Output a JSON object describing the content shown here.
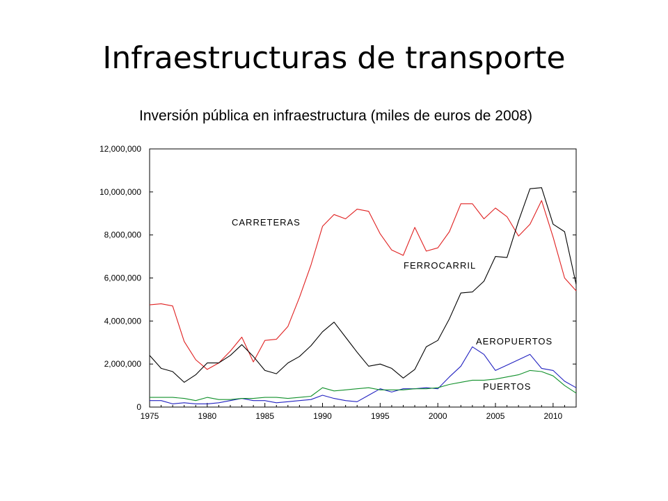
{
  "slide": {
    "title": "Infraestructuras de transporte"
  },
  "chart_data": {
    "type": "line",
    "title": "Inversión pública en infraestructura (miles de euros de 2008)",
    "xlabel": "",
    "ylabel": "",
    "xlim": [
      1975,
      2012
    ],
    "ylim": [
      0,
      12000000
    ],
    "x_ticks": [
      1975,
      1980,
      1985,
      1990,
      1995,
      2000,
      2005,
      2010
    ],
    "y_ticks": [
      0,
      2000000,
      4000000,
      6000000,
      8000000,
      10000000,
      12000000
    ],
    "y_tick_labels": [
      "0",
      "2,000,000",
      "4,000,000",
      "6,000,000",
      "8,000,000",
      "10,000,000",
      "12,000,000"
    ],
    "grid": false,
    "x": [
      1975,
      1976,
      1977,
      1978,
      1979,
      1980,
      1981,
      1982,
      1983,
      1984,
      1985,
      1986,
      1987,
      1988,
      1989,
      1990,
      1991,
      1992,
      1993,
      1994,
      1995,
      1996,
      1997,
      1998,
      1999,
      2000,
      2001,
      2002,
      2003,
      2004,
      2005,
      2006,
      2007,
      2008,
      2009,
      2010,
      2011,
      2012
    ],
    "series": [
      {
        "name": "CARRETERAS",
        "color": "#e02020",
        "values": [
          4750000,
          4800000,
          4700000,
          3050000,
          2200000,
          1750000,
          2050000,
          2600000,
          3250000,
          2100000,
          3100000,
          3150000,
          3750000,
          5100000,
          6600000,
          8400000,
          8950000,
          8750000,
          9200000,
          9100000,
          8050000,
          7300000,
          7050000,
          8350000,
          7250000,
          7400000,
          8150000,
          9450000,
          9450000,
          8750000,
          9250000,
          8850000,
          7950000,
          8500000,
          9600000,
          7900000,
          6000000,
          5400000
        ]
      },
      {
        "name": "FERROCARRIL",
        "color": "#000000",
        "values": [
          2400000,
          1800000,
          1650000,
          1150000,
          1500000,
          2050000,
          2050000,
          2400000,
          2900000,
          2350000,
          1700000,
          1550000,
          2050000,
          2350000,
          2850000,
          3500000,
          3950000,
          3250000,
          2550000,
          1900000,
          2000000,
          1800000,
          1350000,
          1750000,
          2800000,
          3100000,
          4100000,
          5300000,
          5350000,
          5850000,
          7000000,
          6950000,
          8650000,
          10150000,
          10200000,
          8500000,
          8150000,
          5700000
        ]
      },
      {
        "name": "AEROPUERTOS",
        "color": "#2020c0",
        "values": [
          300000,
          300000,
          150000,
          200000,
          150000,
          150000,
          200000,
          300000,
          400000,
          300000,
          300000,
          200000,
          250000,
          300000,
          350000,
          550000,
          400000,
          300000,
          250000,
          550000,
          850000,
          700000,
          850000,
          850000,
          900000,
          850000,
          1400000,
          1900000,
          2800000,
          2450000,
          1700000,
          1950000,
          2200000,
          2450000,
          1800000,
          1700000,
          1200000,
          900000
        ]
      },
      {
        "name": "PUERTOS",
        "color": "#10902a",
        "values": [
          450000,
          450000,
          450000,
          400000,
          300000,
          450000,
          350000,
          350000,
          400000,
          400000,
          450000,
          450000,
          400000,
          450000,
          500000,
          900000,
          750000,
          800000,
          850000,
          900000,
          800000,
          800000,
          800000,
          850000,
          850000,
          900000,
          1050000,
          1150000,
          1250000,
          1250000,
          1300000,
          1400000,
          1500000,
          1700000,
          1650000,
          1450000,
          1000000,
          650000
        ]
      }
    ]
  }
}
